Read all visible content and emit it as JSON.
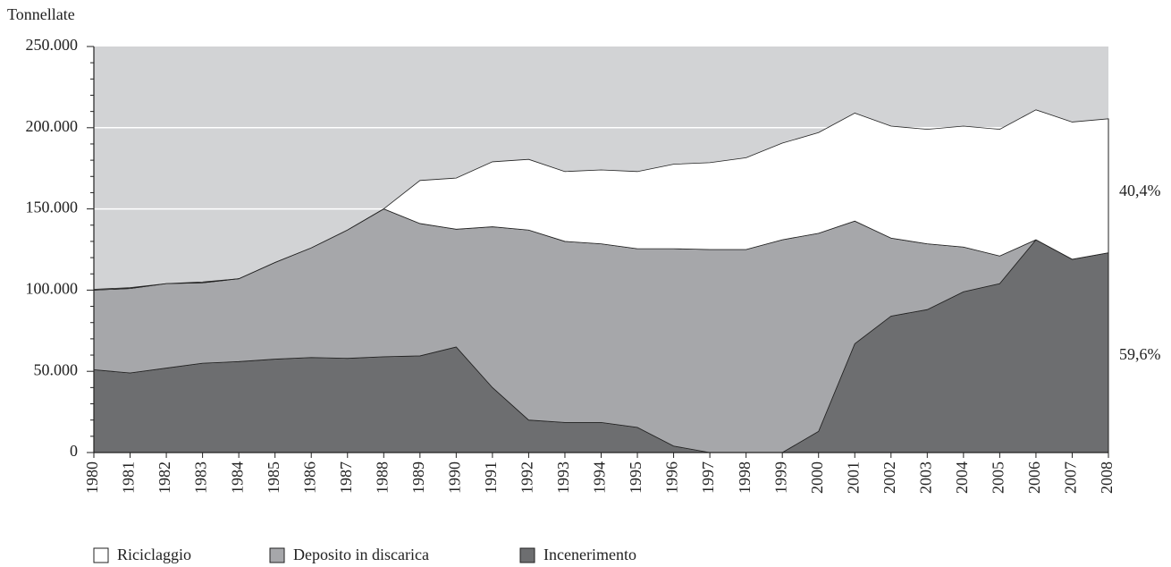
{
  "chart_data": {
    "type": "stacked_area",
    "y_axis_label": "Tonnellate",
    "categories": [
      "1980",
      "1981",
      "1982",
      "1983",
      "1984",
      "1985",
      "1986",
      "1987",
      "1988",
      "1989",
      "1990",
      "1991",
      "1992",
      "1993",
      "1994",
      "1995",
      "1996",
      "1997",
      "1998",
      "1999",
      "2000",
      "2001",
      "2002",
      "2003",
      "2004",
      "2005",
      "2006",
      "2007",
      "2008"
    ],
    "series": [
      {
        "name": "Incenerimento",
        "color": "#6d6e70",
        "values": [
          51000,
          49000,
          52000,
          55000,
          56000,
          57500,
          58500,
          58000,
          59000,
          59500,
          65000,
          40000,
          20000,
          18500,
          18500,
          15500,
          4000,
          0,
          0,
          0,
          13000,
          67000,
          84000,
          88000,
          99000,
          104000,
          131000,
          119000,
          123000
        ]
      },
      {
        "name": "Deposito in discarica",
        "color": "#a6a7aa",
        "values": [
          49000,
          52000,
          52000,
          49500,
          51000,
          59500,
          67500,
          79000,
          91000,
          81500,
          72500,
          99000,
          117000,
          111500,
          110000,
          110000,
          121500,
          125000,
          125000,
          131000,
          122000,
          75500,
          48000,
          40500,
          27500,
          17000,
          0,
          0,
          0
        ]
      },
      {
        "name": "Riciclaggio",
        "color": "#ffffff",
        "values": [
          500,
          500,
          0,
          500,
          0,
          0,
          0,
          0,
          0,
          26500,
          31500,
          40000,
          43500,
          43000,
          45500,
          47500,
          52000,
          53500,
          56500,
          59500,
          62000,
          66500,
          69000,
          70500,
          74500,
          78000,
          80000,
          84500,
          82500
        ]
      }
    ],
    "ylim": [
      0,
      250000
    ],
    "yticks": [
      0,
      {
        "value": 50000,
        "label": "50.000"
      },
      {
        "value": 100000,
        "label": "100.000"
      },
      {
        "value": 150000,
        "label": "150.000"
      },
      {
        "value": 200000,
        "label": "200.000"
      },
      {
        "value": 250000,
        "label": "250.000"
      }
    ],
    "grid": true,
    "grid_color": "#ffffff",
    "background_color": "#d2d3d5",
    "annotations": [
      "40,4%",
      "59,6%"
    ],
    "legend": "bottom-left"
  }
}
